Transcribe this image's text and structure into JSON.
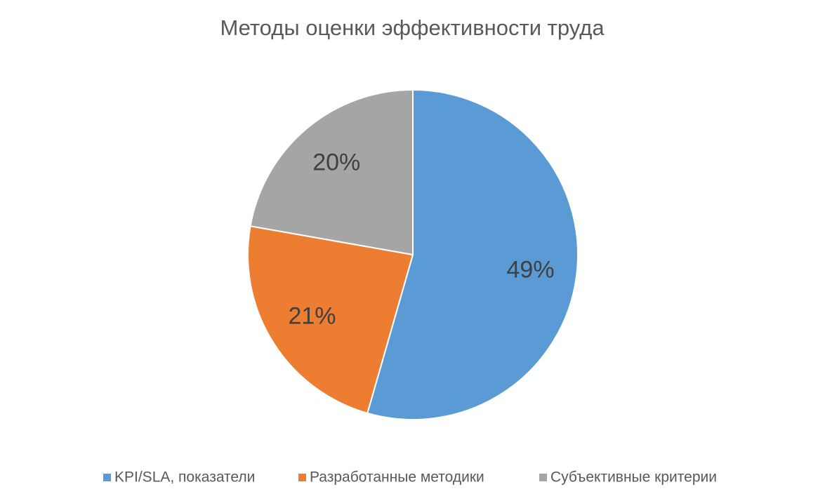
{
  "chart_data": {
    "type": "pie",
    "title": "Методы оценки эффективности труда",
    "categories": [
      "KPI/SLA, показатели",
      "Разработанные методики",
      "Субъективные критерии"
    ],
    "values": [
      49,
      21,
      20
    ],
    "value_labels": [
      "49%",
      "21%",
      "20%"
    ],
    "colors": [
      "#5b9bd5",
      "#ed7d31",
      "#a5a5a5"
    ],
    "legend": "bottom"
  }
}
